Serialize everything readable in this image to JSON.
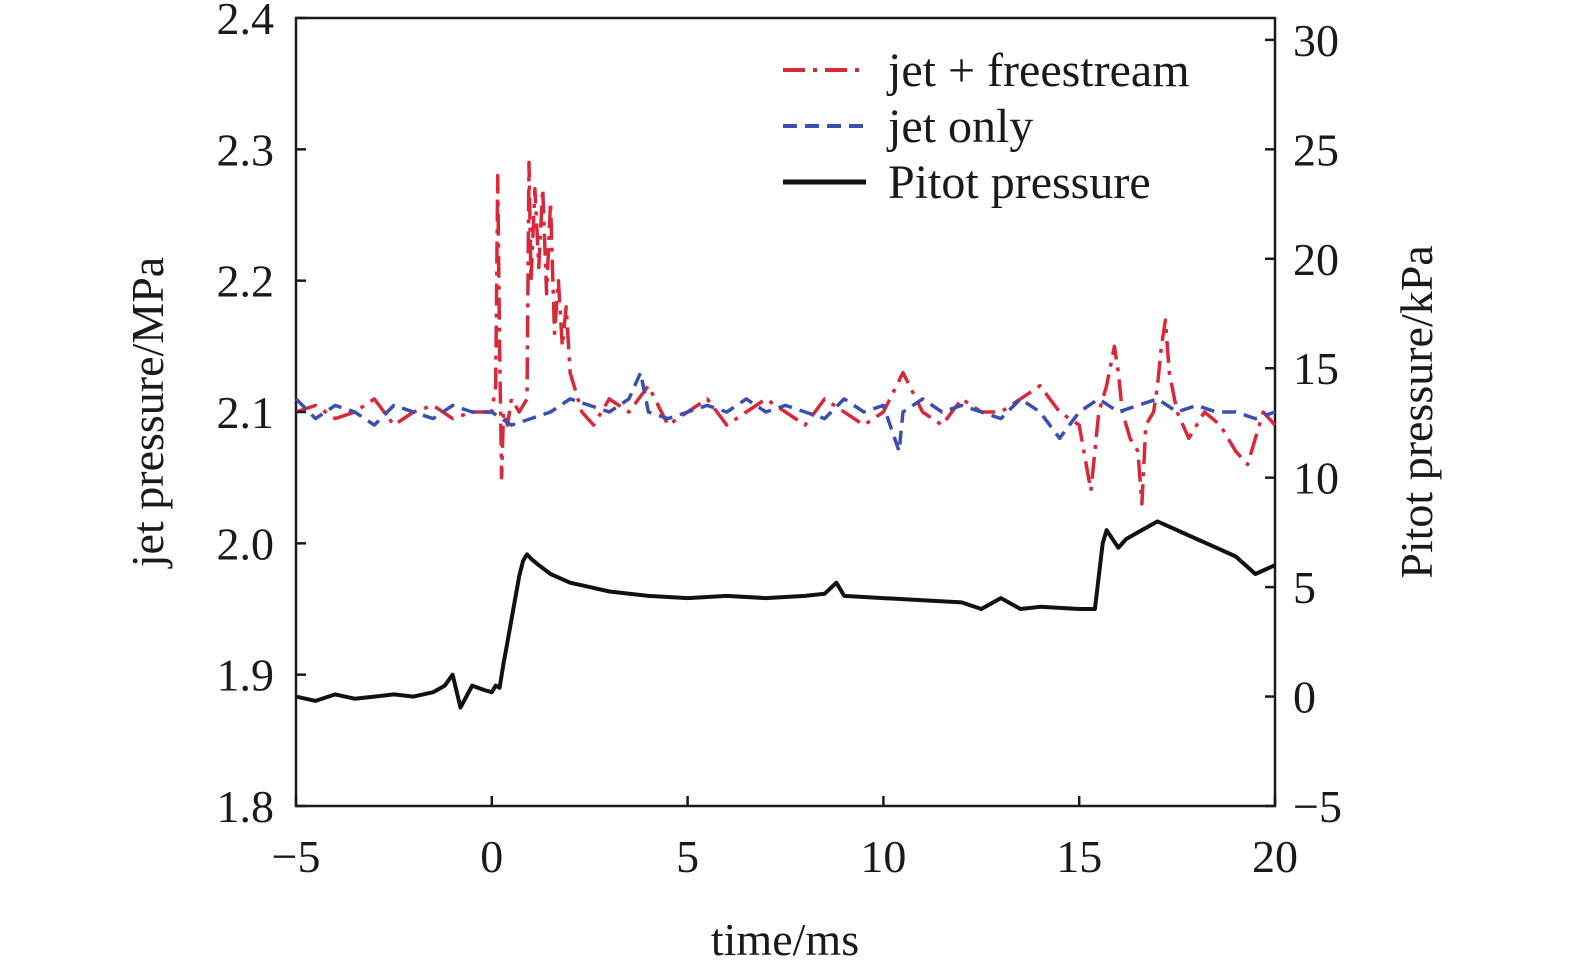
{
  "chart_data": {
    "type": "line",
    "x_axis": {
      "label": "time/ms",
      "range": [
        -5,
        20
      ],
      "ticks": [
        -5,
        0,
        5,
        10,
        15,
        20
      ],
      "tick_labels": [
        "−5",
        "0",
        "5",
        "10",
        "15",
        "20"
      ]
    },
    "y_left": {
      "label": "jet pressure/MPa",
      "range": [
        1.8,
        2.4
      ],
      "ticks": [
        1.8,
        1.9,
        2.0,
        2.1,
        2.2,
        2.3,
        2.4
      ],
      "tick_labels": [
        "1.8",
        "1.9",
        "2.0",
        "2.1",
        "2.2",
        "2.3",
        "2.4"
      ]
    },
    "y_right": {
      "label": "Pitot pressure/kPa",
      "range": [
        -5,
        31
      ],
      "ticks": [
        -5,
        0,
        5,
        10,
        15,
        20,
        25,
        30
      ],
      "tick_labels": [
        "−5",
        "0",
        "5",
        "10",
        "15",
        "20",
        "25",
        "30"
      ]
    },
    "grid": false,
    "legend_position": "top-right",
    "series": [
      {
        "name": "jet + freestream",
        "axis": "left",
        "color": "#d9283a",
        "style": "dash-dot",
        "x": [
          -5,
          -4.5,
          -4,
          -3.5,
          -3,
          -2.5,
          -2,
          -1.5,
          -1,
          -0.5,
          0,
          0.1,
          0.15,
          0.2,
          0.25,
          0.3,
          0.4,
          0.5,
          0.7,
          0.9,
          0.95,
          1.0,
          1.1,
          1.2,
          1.3,
          1.4,
          1.5,
          1.6,
          1.7,
          1.8,
          1.9,
          2.0,
          2.1,
          2.3,
          2.6,
          3,
          3.5,
          4,
          4.5,
          5,
          5.5,
          6,
          6.5,
          7,
          7.5,
          8,
          8.5,
          9,
          9.5,
          10,
          10.5,
          11,
          11.5,
          12,
          12.5,
          13,
          13.5,
          14,
          14.5,
          15,
          15.3,
          15.5,
          15.7,
          15.9,
          16.0,
          16.1,
          16.3,
          16.5,
          16.6,
          16.7,
          16.9,
          17.0,
          17.1,
          17.2,
          17.3,
          17.5,
          17.8,
          18.2,
          18.6,
          19.0,
          19.3,
          19.5,
          19.7,
          20
        ],
        "y": [
          2.1,
          2.105,
          2.095,
          2.1,
          2.11,
          2.09,
          2.1,
          2.105,
          2.095,
          2.1,
          2.1,
          2.12,
          2.28,
          2.15,
          2.05,
          2.1,
          2.09,
          2.11,
          2.1,
          2.11,
          2.29,
          2.2,
          2.27,
          2.21,
          2.27,
          2.19,
          2.26,
          2.16,
          2.2,
          2.15,
          2.18,
          2.13,
          2.12,
          2.1,
          2.09,
          2.11,
          2.1,
          2.12,
          2.09,
          2.1,
          2.11,
          2.09,
          2.1,
          2.11,
          2.1,
          2.09,
          2.11,
          2.1,
          2.09,
          2.1,
          2.13,
          2.1,
          2.09,
          2.11,
          2.1,
          2.1,
          2.11,
          2.12,
          2.1,
          2.09,
          2.04,
          2.1,
          2.12,
          2.15,
          2.13,
          2.1,
          2.08,
          2.07,
          2.03,
          2.09,
          2.1,
          2.12,
          2.15,
          2.17,
          2.13,
          2.1,
          2.08,
          2.1,
          2.09,
          2.07,
          2.06,
          2.08,
          2.1,
          2.09
        ]
      },
      {
        "name": "jet only",
        "axis": "left",
        "color": "#3b4fb0",
        "style": "dashed",
        "x": [
          -5,
          -4.5,
          -4,
          -3.5,
          -3,
          -2.5,
          -2,
          -1.5,
          -1,
          -0.5,
          0,
          0.5,
          1,
          1.5,
          2,
          2.5,
          3,
          3.5,
          3.8,
          4,
          4.5,
          5,
          5.5,
          6,
          6.5,
          7,
          7.5,
          8,
          8.5,
          9,
          9.5,
          10,
          10.4,
          10.5,
          11,
          11.5,
          12,
          12.5,
          13,
          13.5,
          14,
          14.5,
          15,
          15.5,
          16,
          16.5,
          17,
          17.5,
          18,
          18.5,
          19,
          19.5,
          20
        ],
        "y": [
          2.11,
          2.095,
          2.105,
          2.1,
          2.09,
          2.105,
          2.1,
          2.095,
          2.105,
          2.1,
          2.1,
          2.09,
          2.095,
          2.1,
          2.11,
          2.105,
          2.1,
          2.11,
          2.13,
          2.1,
          2.095,
          2.1,
          2.105,
          2.1,
          2.11,
          2.1,
          2.105,
          2.1,
          2.095,
          2.11,
          2.1,
          2.105,
          2.07,
          2.1,
          2.11,
          2.1,
          2.105,
          2.1,
          2.095,
          2.11,
          2.1,
          2.08,
          2.1,
          2.11,
          2.1,
          2.105,
          2.11,
          2.1,
          2.105,
          2.1,
          2.1,
          2.095,
          2.1
        ]
      },
      {
        "name": "Pitot pressure",
        "axis": "right",
        "color": "#111111",
        "style": "solid",
        "x": [
          -5,
          -4.5,
          -4,
          -3.5,
          -3,
          -2.5,
          -2,
          -1.5,
          -1.2,
          -1.0,
          -0.8,
          -0.5,
          -0.2,
          0,
          0.1,
          0.2,
          0.3,
          0.4,
          0.5,
          0.6,
          0.7,
          0.8,
          0.9,
          1.0,
          1.2,
          1.5,
          2.0,
          2.5,
          3,
          4,
          5,
          6,
          7,
          8,
          8.5,
          8.8,
          9,
          10,
          11,
          12,
          12.5,
          13,
          13.5,
          14,
          15,
          15.4,
          15.5,
          15.6,
          15.7,
          16.0,
          16.2,
          16.5,
          17,
          17.5,
          18,
          18.5,
          19,
          19.5,
          20
        ],
        "y": [
          0.0,
          -0.2,
          0.1,
          -0.1,
          0.0,
          0.1,
          0.0,
          0.2,
          0.5,
          1.0,
          -0.5,
          0.5,
          0.3,
          0.2,
          0.5,
          0.4,
          1.5,
          2.5,
          3.5,
          4.5,
          5.5,
          6.2,
          6.5,
          6.3,
          6.0,
          5.6,
          5.2,
          5.0,
          4.8,
          4.6,
          4.5,
          4.6,
          4.5,
          4.6,
          4.7,
          5.2,
          4.6,
          4.5,
          4.4,
          4.3,
          4.0,
          4.5,
          4.0,
          4.1,
          4.0,
          4.0,
          5.5,
          7.0,
          7.6,
          6.8,
          7.2,
          7.5,
          8.0,
          7.6,
          7.2,
          6.8,
          6.4,
          5.6,
          6.0
        ]
      }
    ]
  }
}
